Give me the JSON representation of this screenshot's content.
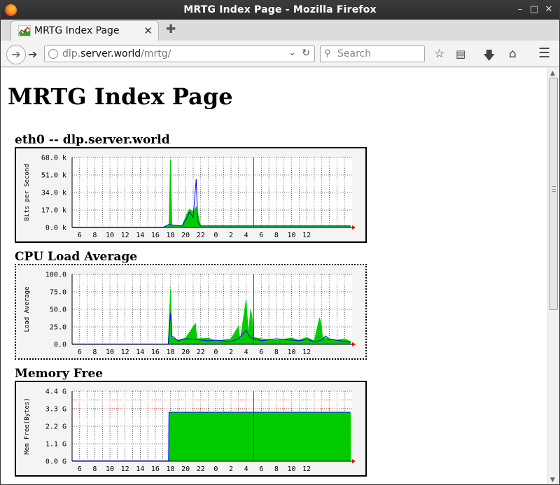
{
  "window": {
    "title": "MRTG Index Page - Mozilla Firefox"
  },
  "tab": {
    "label": "MRTG Index Page"
  },
  "address": {
    "host_prefix": "dlp.",
    "host_main": "server.world",
    "path": "/mrtg/"
  },
  "search": {
    "placeholder": "Search"
  },
  "icons": [
    "firefox-logo-icon",
    "minimize-icon",
    "maximize-icon",
    "close-icon",
    "mrtg-favicon-icon",
    "tab-close-icon",
    "new-tab-icon",
    "back-icon",
    "forward-icon",
    "globe-icon",
    "dropdown-icon",
    "reload-icon",
    "search-icon",
    "bookmark-star-icon",
    "reading-list-icon",
    "download-icon",
    "home-icon",
    "menu-icon"
  ],
  "page": {
    "heading": "MRTG Index Page"
  },
  "x_ticks": [
    "6",
    "8",
    "10",
    "12",
    "14",
    "16",
    "18",
    "20",
    "22",
    "0",
    "2",
    "4",
    "6",
    "8",
    "10",
    "12"
  ],
  "graphs": [
    {
      "title": "eth0 -- dlp.server.world",
      "ylabel": "Bits per Second",
      "yticks": [
        "68.0 k",
        "51.0 k",
        "34.0 k",
        "17.0 k",
        "0.0 k"
      ]
    },
    {
      "title": "CPU Load Average",
      "ylabel": "Load Average",
      "yticks": [
        "100.0",
        "75.0",
        "50.0",
        "25.0",
        "0.0"
      ]
    },
    {
      "title": "Memory Free",
      "ylabel": "Mem Free(Bytes)",
      "yticks": [
        "4.4 G",
        "3.3 G",
        "2.2 G",
        "1.1 G",
        "0.0 G"
      ]
    }
  ],
  "chart_data": [
    {
      "type": "area",
      "title": "eth0 -- dlp.server.world",
      "ylabel": "Bits per Second",
      "ylim": [
        0,
        68000
      ],
      "x": [
        "6",
        "8",
        "10",
        "12",
        "14",
        "16",
        "18",
        "20",
        "22",
        "0",
        "2",
        "4",
        "6",
        "8",
        "10",
        "12"
      ],
      "series": [
        {
          "color": "#00cc00",
          "points": [
            [
              13.0,
              0
            ],
            [
              13.8,
              2000
            ],
            [
              14.0,
              66000
            ],
            [
              14.2,
              2000
            ],
            [
              15.5,
              1000
            ],
            [
              16.1,
              12000
            ],
            [
              16.5,
              18000
            ],
            [
              17.0,
              15000
            ],
            [
              17.4,
              20000
            ],
            [
              18.0,
              1000
            ],
            [
              20,
              1000
            ],
            [
              24,
              1000
            ],
            [
              28,
              1000
            ],
            [
              32,
              1000
            ],
            [
              36,
              1000
            ],
            [
              37.8,
              1000
            ]
          ]
        },
        {
          "color": "#0000ff",
          "points": [
            [
              13.0,
              0
            ],
            [
              13.8,
              3000
            ],
            [
              14.0,
              2500
            ],
            [
              15.5,
              1500
            ],
            [
              16.1,
              8000
            ],
            [
              16.5,
              15000
            ],
            [
              17.0,
              10000
            ],
            [
              17.4,
              47000
            ],
            [
              17.6,
              5000
            ],
            [
              18.0,
              1500
            ],
            [
              20,
              1500
            ],
            [
              24,
              1500
            ],
            [
              28,
              1500
            ],
            [
              32,
              1500
            ],
            [
              36,
              1500
            ],
            [
              37.8,
              1500
            ]
          ]
        }
      ]
    },
    {
      "type": "area",
      "title": "CPU Load Average",
      "ylabel": "Load Average",
      "ylim": [
        0,
        100
      ],
      "x": [
        "6",
        "8",
        "10",
        "12",
        "14",
        "16",
        "18",
        "20",
        "22",
        "0",
        "2",
        "4",
        "6",
        "8",
        "10",
        "12"
      ],
      "series": [
        {
          "color": "#00cc00",
          "points": [
            [
              13.7,
              0
            ],
            [
              14.0,
              78
            ],
            [
              14.2,
              10
            ],
            [
              15,
              6
            ],
            [
              16,
              9
            ],
            [
              17.3,
              30
            ],
            [
              17.5,
              8
            ],
            [
              19,
              9
            ],
            [
              20,
              5
            ],
            [
              22,
              8
            ],
            [
              23,
              26
            ],
            [
              23.2,
              5
            ],
            [
              24,
              64
            ],
            [
              24.3,
              15
            ],
            [
              24.6,
              50
            ],
            [
              24.8,
              38
            ],
            [
              25,
              10
            ],
            [
              26,
              8
            ],
            [
              28,
              6
            ],
            [
              30,
              9
            ],
            [
              31,
              6
            ],
            [
              32,
              10
            ],
            [
              33,
              5
            ],
            [
              33.7,
              38
            ],
            [
              33.9,
              30
            ],
            [
              34.1,
              10
            ],
            [
              35,
              8
            ],
            [
              36,
              6
            ],
            [
              37,
              8
            ],
            [
              37.8,
              4
            ]
          ]
        },
        {
          "color": "#0000ff",
          "points": [
            [
              13.7,
              0
            ],
            [
              14.0,
              45
            ],
            [
              14.2,
              12
            ],
            [
              15,
              5
            ],
            [
              16,
              8
            ],
            [
              17.3,
              7
            ],
            [
              19,
              5
            ],
            [
              20,
              6
            ],
            [
              22,
              4
            ],
            [
              23,
              8
            ],
            [
              24,
              20
            ],
            [
              24.5,
              10
            ],
            [
              25,
              8
            ],
            [
              26,
              5
            ],
            [
              28,
              8
            ],
            [
              30,
              6
            ],
            [
              31,
              5
            ],
            [
              32,
              7
            ],
            [
              33,
              4
            ],
            [
              34,
              6
            ],
            [
              34.5,
              12
            ],
            [
              35,
              7
            ],
            [
              36,
              6
            ],
            [
              37,
              4
            ],
            [
              37.8,
              3
            ]
          ]
        }
      ]
    },
    {
      "type": "area",
      "title": "Memory Free",
      "ylabel": "Mem Free(Bytes)",
      "ylim": [
        0,
        4.4
      ],
      "x": [
        "6",
        "8",
        "10",
        "12",
        "14",
        "16",
        "18",
        "20",
        "22",
        "0",
        "2",
        "4",
        "6",
        "8",
        "10",
        "12"
      ],
      "series": [
        {
          "color": "#00cc00",
          "points": [
            [
              13.75,
              0
            ],
            [
              13.8,
              3.05
            ],
            [
              15,
              3.05
            ],
            [
              37.8,
              3.05
            ]
          ]
        },
        {
          "color": "#0000ff",
          "points": [
            [
              13.75,
              0
            ],
            [
              13.8,
              3.08
            ],
            [
              15,
              3.08
            ],
            [
              37.8,
              3.08
            ]
          ]
        }
      ]
    }
  ]
}
